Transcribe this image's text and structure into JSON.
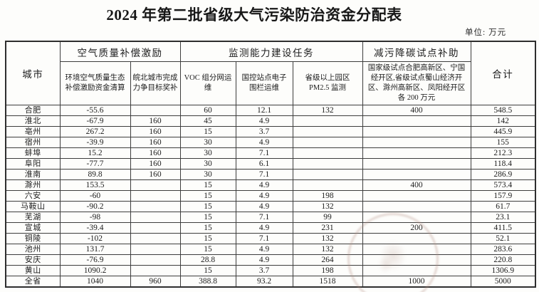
{
  "page": {
    "title": "2024 年第二批省级大气污染防治资金分配表",
    "unit_label": "单位: 万元"
  },
  "table": {
    "header": {
      "city": "城市",
      "air_quality_group": "空气质量补偿激励",
      "monitoring_group": "监测能力建设任务",
      "carbon_group": "减污降碳试点补助",
      "total": "合计",
      "sub": {
        "eco_compensation": "环境空气质量生态\n补偿激励资金清算",
        "wanbei_award": "皖北城市完成\n力争目标奖补",
        "voc": "VOC 组分网运维",
        "fence": "国控站点电子\n围栏运维",
        "pm25": "省级以上园区\nPM2.5 监测",
        "pilot_detail": "国家级试点合肥高新区、宁国\n经开区,省级试点蜀山经济开\n区、滁州高新区、凤阳经开区\n各 200 万元"
      }
    },
    "rows": [
      {
        "city": "合肥",
        "values": [
          "-55.6",
          "",
          "60",
          "12.1",
          "132",
          "400",
          "548.5"
        ]
      },
      {
        "city": "淮北",
        "values": [
          "-67.9",
          "160",
          "45",
          "4.9",
          "",
          "",
          "142"
        ]
      },
      {
        "city": "亳州",
        "values": [
          "267.2",
          "160",
          "15",
          "3.7",
          "",
          "",
          "445.9"
        ]
      },
      {
        "city": "宿州",
        "values": [
          "-39.9",
          "160",
          "30",
          "4.9",
          "",
          "",
          "155"
        ]
      },
      {
        "city": "蚌埠",
        "values": [
          "15.2",
          "160",
          "30",
          "7.1",
          "",
          "",
          "212.3"
        ]
      },
      {
        "city": "阜阳",
        "values": [
          "-77.7",
          "160",
          "30",
          "6.1",
          "",
          "",
          "118.4"
        ]
      },
      {
        "city": "淮南",
        "values": [
          "89.8",
          "160",
          "30",
          "7.1",
          "",
          "",
          "286.9"
        ]
      },
      {
        "city": "滁州",
        "values": [
          "153.5",
          "",
          "15",
          "4.9",
          "",
          "400",
          "573.4"
        ]
      },
      {
        "city": "六安",
        "values": [
          "-60",
          "",
          "15",
          "4.9",
          "198",
          "",
          "157.9"
        ]
      },
      {
        "city": "马鞍山",
        "values": [
          "-90.2",
          "",
          "15",
          "4.9",
          "132",
          "",
          "61.7"
        ]
      },
      {
        "city": "芜湖",
        "values": [
          "-98",
          "",
          "15",
          "7.1",
          "99",
          "",
          "23.1"
        ]
      },
      {
        "city": "宣城",
        "values": [
          "-39.4",
          "",
          "15",
          "4.9",
          "231",
          "200",
          "411.5"
        ]
      },
      {
        "city": "铜陵",
        "values": [
          "-102",
          "",
          "15",
          "7.1",
          "132",
          "",
          "52.1"
        ]
      },
      {
        "city": "池州",
        "values": [
          "131.7",
          "",
          "15",
          "4.9",
          "132",
          "",
          "283.6"
        ]
      },
      {
        "city": "安庆",
        "values": [
          "-76.9",
          "",
          "28.8",
          "4.9",
          "264",
          "",
          "220.8"
        ]
      },
      {
        "city": "黄山",
        "values": [
          "1090.2",
          "",
          "15",
          "3.7",
          "198",
          "",
          "1306.9"
        ]
      },
      {
        "city": "全省",
        "values": [
          "1040",
          "960",
          "388.8",
          "93.2",
          "1518",
          "1000",
          "5000"
        ]
      }
    ]
  },
  "colors": {
    "border": "#3d3d3d",
    "text": "#1c1c1c",
    "stamp": "#b69288"
  }
}
